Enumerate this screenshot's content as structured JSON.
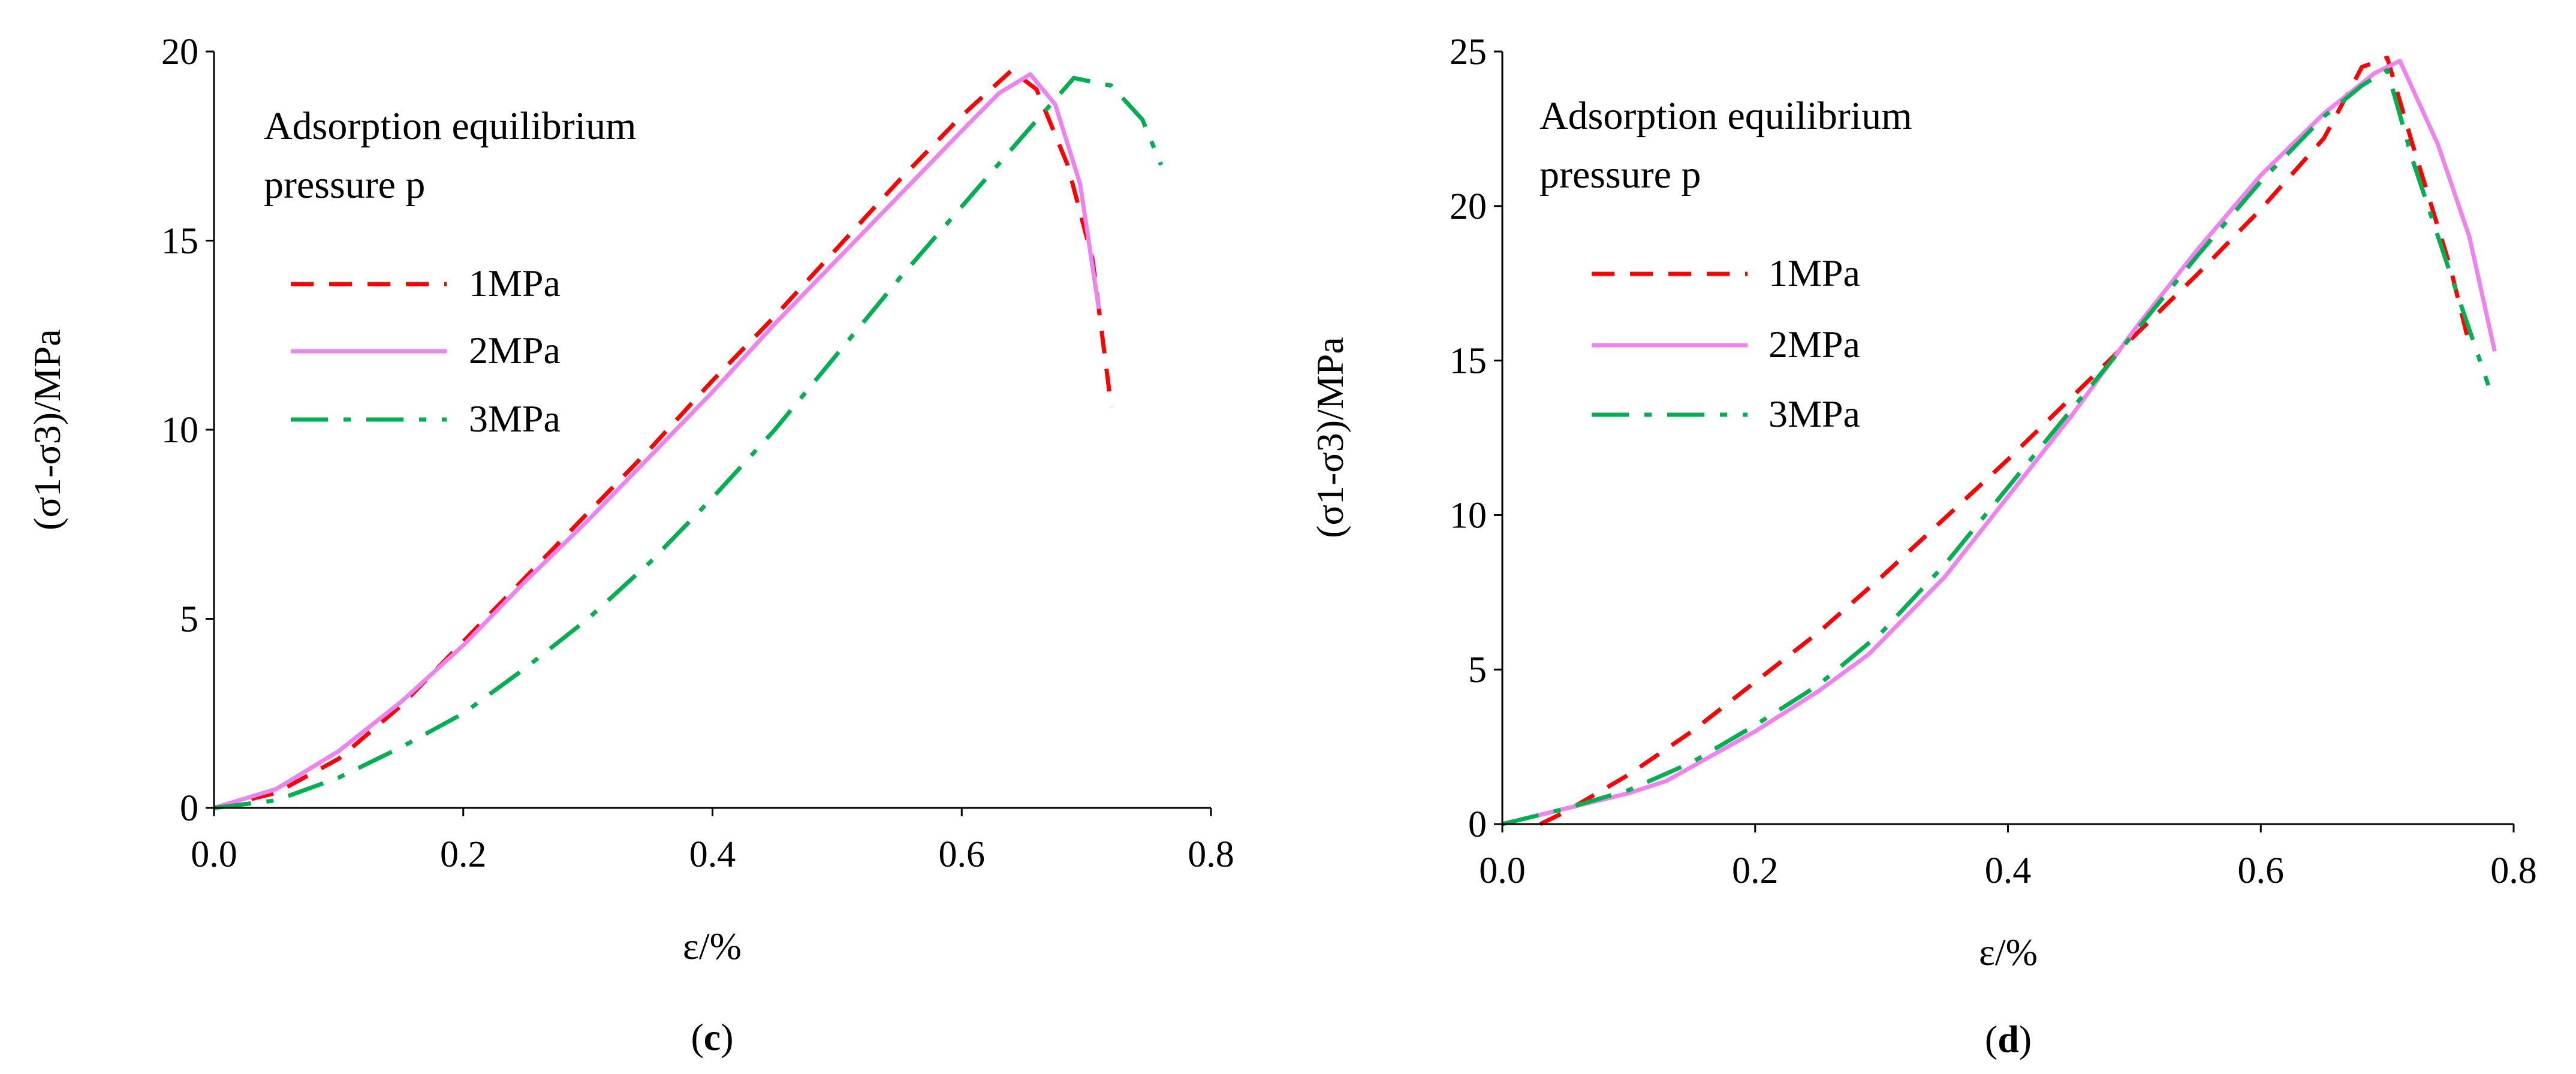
{
  "chart_data": [
    {
      "type": "line",
      "panel_caption": {
        "open": "(",
        "letter": "c",
        "close": ")"
      },
      "xlabel": "ε/%",
      "ylabel": "(σ1-σ3)/MPa",
      "xlim": [
        0,
        0.8
      ],
      "ylim": [
        0,
        20
      ],
      "xticks": [
        0,
        0.2,
        0.4,
        0.6,
        0.8
      ],
      "xtick_labels": [
        "0.0",
        "0.2",
        "0.4",
        "0.6",
        "0.8"
      ],
      "yticks": [
        0,
        5,
        10,
        15,
        20
      ],
      "ytick_labels": [
        "0",
        "5",
        "10",
        "15",
        "20"
      ],
      "grid": false,
      "legend": {
        "title_line1": "Adsorption equilibrium",
        "title_line2": "pressure p",
        "position": "top-left"
      },
      "series": [
        {
          "name": "1MPa",
          "color": "#ff0000",
          "dash": "dashed",
          "points": [
            [
              0,
              0
            ],
            [
              0.05,
              0.4
            ],
            [
              0.1,
              1.3
            ],
            [
              0.15,
              2.7
            ],
            [
              0.2,
              4.4
            ],
            [
              0.25,
              6.1
            ],
            [
              0.3,
              7.8
            ],
            [
              0.35,
              9.5
            ],
            [
              0.4,
              11.3
            ],
            [
              0.45,
              13.0
            ],
            [
              0.5,
              14.8
            ],
            [
              0.55,
              16.6
            ],
            [
              0.6,
              18.3
            ],
            [
              0.64,
              19.5
            ],
            [
              0.66,
              19.0
            ],
            [
              0.685,
              17.0
            ],
            [
              0.705,
              14.5
            ],
            [
              0.72,
              10.6
            ]
          ]
        },
        {
          "name": "2MPa",
          "color": "#ee82ee",
          "dash": "solid",
          "points": [
            [
              0,
              0
            ],
            [
              0.05,
              0.5
            ],
            [
              0.1,
              1.5
            ],
            [
              0.15,
              2.8
            ],
            [
              0.2,
              4.3
            ],
            [
              0.25,
              6.0
            ],
            [
              0.3,
              7.6
            ],
            [
              0.35,
              9.3
            ],
            [
              0.4,
              11.0
            ],
            [
              0.45,
              12.8
            ],
            [
              0.5,
              14.5
            ],
            [
              0.55,
              16.2
            ],
            [
              0.6,
              17.9
            ],
            [
              0.63,
              18.9
            ],
            [
              0.655,
              19.4
            ],
            [
              0.675,
              18.6
            ],
            [
              0.695,
              16.5
            ],
            [
              0.71,
              13.2
            ]
          ]
        },
        {
          "name": "3MPa",
          "color": "#00b050",
          "dash": "dashdot",
          "points": [
            [
              0,
              0
            ],
            [
              0.05,
              0.2
            ],
            [
              0.1,
              0.8
            ],
            [
              0.15,
              1.6
            ],
            [
              0.2,
              2.5
            ],
            [
              0.25,
              3.7
            ],
            [
              0.3,
              5.0
            ],
            [
              0.35,
              6.5
            ],
            [
              0.4,
              8.2
            ],
            [
              0.45,
              10.0
            ],
            [
              0.5,
              12.0
            ],
            [
              0.55,
              14.0
            ],
            [
              0.6,
              15.9
            ],
            [
              0.65,
              17.8
            ],
            [
              0.69,
              19.3
            ],
            [
              0.72,
              19.1
            ],
            [
              0.745,
              18.2
            ],
            [
              0.76,
              17.0
            ]
          ]
        }
      ]
    },
    {
      "type": "line",
      "panel_caption": {
        "open": "(",
        "letter": "d",
        "close": ")"
      },
      "xlabel": "ε/%",
      "ylabel": "(σ1-σ3)/MPa",
      "xlim": [
        0,
        0.8
      ],
      "ylim": [
        0,
        25
      ],
      "xticks": [
        0,
        0.2,
        0.4,
        0.6,
        0.8
      ],
      "xtick_labels": [
        "0.0",
        "0.2",
        "0.4",
        "0.6",
        "0.8"
      ],
      "yticks": [
        0,
        5,
        10,
        15,
        20,
        25
      ],
      "ytick_labels": [
        "0",
        "5",
        "10",
        "15",
        "20",
        "25"
      ],
      "grid": false,
      "legend": {
        "title_line1": "Adsorption equilibrium",
        "title_line2": "pressure p",
        "position": "top-left"
      },
      "series": [
        {
          "name": "1MPa",
          "color": "#ff0000",
          "dash": "dashed",
          "points": [
            [
              0.03,
              0
            ],
            [
              0.05,
              0.4
            ],
            [
              0.1,
              1.6
            ],
            [
              0.15,
              3.0
            ],
            [
              0.2,
              4.6
            ],
            [
              0.25,
              6.2
            ],
            [
              0.3,
              8.0
            ],
            [
              0.35,
              9.9
            ],
            [
              0.4,
              11.8
            ],
            [
              0.45,
              13.8
            ],
            [
              0.5,
              15.8
            ],
            [
              0.55,
              17.8
            ],
            [
              0.6,
              19.9
            ],
            [
              0.65,
              22.2
            ],
            [
              0.68,
              24.5
            ],
            [
              0.7,
              24.8
            ],
            [
              0.72,
              22.0
            ],
            [
              0.75,
              18.0
            ],
            [
              0.765,
              15.5
            ]
          ]
        },
        {
          "name": "2MPa",
          "color": "#ee82ee",
          "dash": "solid",
          "points": [
            [
              0,
              0
            ],
            [
              0.05,
              0.5
            ],
            [
              0.1,
              1.0
            ],
            [
              0.13,
              1.4
            ],
            [
              0.2,
              3.0
            ],
            [
              0.25,
              4.3
            ],
            [
              0.29,
              5.5
            ],
            [
              0.35,
              8.0
            ],
            [
              0.4,
              10.6
            ],
            [
              0.45,
              13.2
            ],
            [
              0.5,
              16.0
            ],
            [
              0.55,
              18.6
            ],
            [
              0.6,
              21.0
            ],
            [
              0.65,
              23.0
            ],
            [
              0.69,
              24.3
            ],
            [
              0.71,
              24.7
            ],
            [
              0.74,
              22.0
            ],
            [
              0.765,
              19.0
            ],
            [
              0.785,
              15.3
            ]
          ]
        },
        {
          "name": "3MPa",
          "color": "#00b050",
          "dash": "dashdot",
          "points": [
            [
              0,
              0
            ],
            [
              0.05,
              0.5
            ],
            [
              0.1,
              1.1
            ],
            [
              0.15,
              2.0
            ],
            [
              0.2,
              3.2
            ],
            [
              0.25,
              4.5
            ],
            [
              0.3,
              6.2
            ],
            [
              0.35,
              8.4
            ],
            [
              0.4,
              10.9
            ],
            [
              0.45,
              13.4
            ],
            [
              0.5,
              15.9
            ],
            [
              0.55,
              18.4
            ],
            [
              0.6,
              20.8
            ],
            [
              0.65,
              22.9
            ],
            [
              0.68,
              23.9
            ],
            [
              0.7,
              24.4
            ],
            [
              0.72,
              21.5
            ],
            [
              0.75,
              17.8
            ],
            [
              0.78,
              14.2
            ]
          ]
        }
      ]
    }
  ]
}
